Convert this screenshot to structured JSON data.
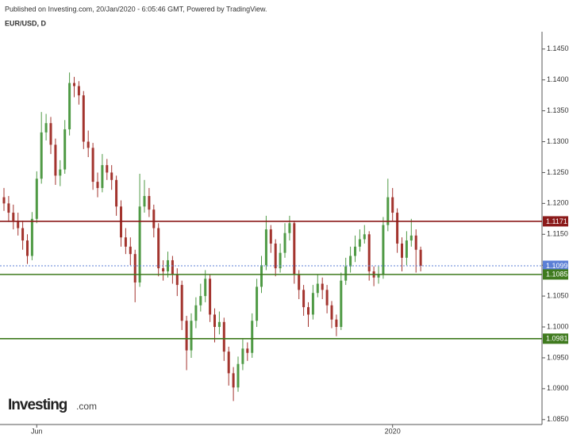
{
  "header": {
    "published": "Published on Investing.com, 20/Jan/2020 - 6:05:46 GMT, Powered by TradingView.",
    "symbol": "EUR/USD, D"
  },
  "logo": {
    "brand": "Investing",
    "suffix": ".com"
  },
  "chart_data": {
    "type": "candlestick",
    "categories": [
      null,
      null,
      null,
      null,
      null,
      null,
      null,
      "Jun",
      null,
      null,
      null,
      null,
      null,
      null,
      null,
      null,
      null,
      null,
      null,
      null,
      null,
      null,
      null,
      null,
      null,
      null,
      null,
      null,
      null,
      null,
      null,
      null,
      null,
      null,
      null,
      null,
      null,
      null,
      null,
      null,
      null,
      null,
      null,
      null,
      null,
      null,
      null,
      null,
      null,
      null,
      null,
      null,
      null,
      null,
      null,
      null,
      null,
      null,
      null,
      null,
      null,
      null,
      null,
      null,
      null,
      null,
      null,
      null,
      null,
      null,
      null,
      null,
      null,
      null,
      null,
      null,
      null,
      null,
      null,
      null,
      null,
      null,
      null,
      "2020",
      null,
      null,
      null,
      null,
      null,
      null
    ],
    "open": [
      1.121,
      1.12,
      1.1185,
      1.1172,
      1.116,
      1.114,
      1.1115,
      1.1175,
      1.124,
      1.1315,
      1.133,
      1.1295,
      1.1245,
      1.1255,
      1.132,
      1.1395,
      1.139,
      1.1375,
      1.13,
      1.129,
      1.1235,
      1.1225,
      1.1262,
      1.125,
      1.1238,
      1.1195,
      1.1145,
      1.113,
      1.1118,
      1.1072,
      1.1195,
      1.1212,
      1.119,
      1.116,
      1.1095,
      1.109,
      1.1108,
      1.1085,
      1.1068,
      1.101,
      1.0962,
      1.101,
      1.1035,
      1.105,
      1.1078,
      1.102,
      1.1,
      1.1008,
      1.096,
      1.0925,
      1.0902,
      1.094,
      1.0965,
      1.0958,
      1.101,
      1.1065,
      1.11,
      1.1158,
      1.1135,
      1.1095,
      1.112,
      1.1152,
      1.1168,
      1.1085,
      1.106,
      1.1032,
      1.102,
      1.1055,
      1.107,
      1.106,
      1.1035,
      1.1012,
      1.1,
      1.1075,
      1.1098,
      1.1115,
      1.113,
      1.1142,
      1.115,
      1.109,
      1.108,
      1.1085,
      1.1165,
      1.121,
      1.1185,
      1.1135,
      1.1112,
      1.114,
      1.1148,
      1.1125
    ],
    "high": [
      1.1225,
      1.1212,
      1.1198,
      1.1185,
      1.1172,
      1.115,
      1.1186,
      1.1252,
      1.1348,
      1.1345,
      1.134,
      1.1305,
      1.127,
      1.1335,
      1.1412,
      1.1405,
      1.1398,
      1.1382,
      1.1318,
      1.1298,
      1.125,
      1.128,
      1.1272,
      1.1262,
      1.1245,
      1.1205,
      1.116,
      1.1145,
      1.1125,
      1.1248,
      1.1238,
      1.1225,
      1.1198,
      1.1168,
      1.1108,
      1.1122,
      1.1115,
      1.1095,
      1.1075,
      1.1018,
      1.1022,
      1.1048,
      1.107,
      1.1092,
      1.1085,
      1.103,
      1.1025,
      1.1015,
      1.0968,
      1.0935,
      1.0952,
      1.098,
      1.0975,
      1.1022,
      1.1078,
      1.1115,
      1.118,
      1.1165,
      1.1142,
      1.1135,
      1.1168,
      1.118,
      1.1172,
      1.1092,
      1.1068,
      1.104,
      1.1068,
      1.1085,
      1.108,
      1.1068,
      1.1042,
      1.102,
      1.1088,
      1.1112,
      1.113,
      1.1148,
      1.1158,
      1.1165,
      1.1155,
      1.1098,
      1.1098,
      1.1178,
      1.124,
      1.1225,
      1.1192,
      1.1145,
      1.1155,
      1.1175,
      1.1158,
      1.113
    ],
    "low": [
      1.1188,
      1.117,
      1.1158,
      1.1148,
      1.1125,
      1.1102,
      1.1108,
      1.1168,
      1.1232,
      1.1302,
      1.128,
      1.123,
      1.1228,
      1.1248,
      1.131,
      1.1372,
      1.136,
      1.1288,
      1.1275,
      1.1222,
      1.121,
      1.1218,
      1.1238,
      1.1222,
      1.118,
      1.113,
      1.1118,
      1.11,
      1.104,
      1.1065,
      1.1185,
      1.1178,
      1.1145,
      1.1082,
      1.1075,
      1.108,
      1.107,
      1.105,
      1.0995,
      1.093,
      1.095,
      1.0998,
      1.1025,
      1.104,
      1.1008,
      1.0975,
      1.0988,
      1.0945,
      1.0905,
      1.088,
      1.0895,
      1.093,
      1.0945,
      1.095,
      1.1,
      1.1055,
      1.1092,
      1.112,
      1.1082,
      1.1088,
      1.1112,
      1.114,
      1.107,
      1.1045,
      1.1018,
      1.1,
      1.1012,
      1.1048,
      1.1045,
      1.1022,
      1.0998,
      1.0985,
      1.0995,
      1.1068,
      1.1088,
      1.1105,
      1.1122,
      1.1135,
      1.1075,
      1.1066,
      1.107,
      1.1078,
      1.1155,
      1.1172,
      1.112,
      1.109,
      1.11,
      1.113,
      1.1088,
      1.109
    ],
    "close": [
      1.12,
      1.1185,
      1.1172,
      1.116,
      1.114,
      1.1115,
      1.1175,
      1.124,
      1.1315,
      1.133,
      1.1295,
      1.1245,
      1.1255,
      1.132,
      1.1395,
      1.139,
      1.1375,
      1.13,
      1.129,
      1.1235,
      1.1225,
      1.1262,
      1.125,
      1.1238,
      1.1195,
      1.1145,
      1.113,
      1.1118,
      1.1072,
      1.1195,
      1.1212,
      1.119,
      1.116,
      1.1095,
      1.109,
      1.1108,
      1.1085,
      1.1068,
      1.101,
      1.0962,
      1.101,
      1.1035,
      1.105,
      1.1078,
      1.102,
      1.1,
      1.1008,
      1.096,
      1.0925,
      1.0902,
      1.094,
      1.0965,
      1.0958,
      1.101,
      1.1065,
      1.11,
      1.1158,
      1.1135,
      1.1095,
      1.112,
      1.1152,
      1.1168,
      1.1085,
      1.106,
      1.1032,
      1.102,
      1.1055,
      1.107,
      1.106,
      1.1035,
      1.1012,
      1.1,
      1.1075,
      1.1098,
      1.1115,
      1.113,
      1.1142,
      1.115,
      1.109,
      1.108,
      1.1085,
      1.1165,
      1.121,
      1.1185,
      1.1135,
      1.1112,
      1.114,
      1.1148,
      1.1125,
      1.1099
    ],
    "up_color": "#4f9a45",
    "down_color": "#a3342e",
    "ylim": [
      1.0842,
      1.1478
    ],
    "yticks": [
      {
        "value": 1.085,
        "label": "1.0850"
      },
      {
        "value": 1.09,
        "label": "1.0900"
      },
      {
        "value": 1.095,
        "label": "1.0950"
      },
      {
        "value": 1.1,
        "label": "1.1000"
      },
      {
        "value": 1.105,
        "label": "1.1050"
      },
      {
        "value": 1.11,
        "label": "1.1100"
      },
      {
        "value": 1.115,
        "label": "1.1150"
      },
      {
        "value": 1.12,
        "label": "1.1200"
      },
      {
        "value": 1.125,
        "label": "1.1250"
      },
      {
        "value": 1.13,
        "label": "1.1300"
      },
      {
        "value": 1.135,
        "label": "1.1350"
      },
      {
        "value": 1.14,
        "label": "1.1400"
      },
      {
        "value": 1.145,
        "label": "1.1450"
      }
    ],
    "levels": [
      {
        "value": 1.1171,
        "color": "#8b1a1a",
        "dashed": false
      },
      {
        "value": 1.1099,
        "color": "#5b7fd6",
        "dashed": true
      },
      {
        "value": 1.1085,
        "color": "#3f7a1e",
        "dashed": false
      },
      {
        "value": 1.0981,
        "color": "#3f7a1e",
        "dashed": false
      }
    ]
  }
}
